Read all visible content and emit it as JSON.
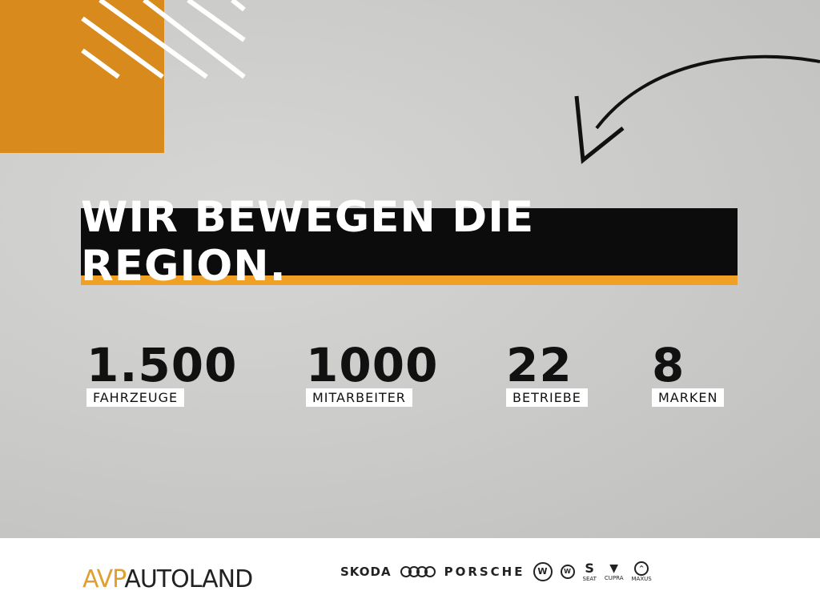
{
  "colors": {
    "orange": "#d88a1c",
    "accent_bar": "#f0a024",
    "headline_bg": "#0c0c0c"
  },
  "headline": "WIR BEWEGEN DIE REGION.",
  "stats": [
    {
      "value": "1.500",
      "label": "FAHRZEUGE"
    },
    {
      "value": "1000",
      "label": "MITARBEITER"
    },
    {
      "value": "22",
      "label": "BETRIEBE"
    },
    {
      "value": "8",
      "label": "MARKEN"
    }
  ],
  "footer": {
    "logo_avp": "AVP",
    "logo_autoland": "AUTOLAND",
    "brands": [
      "SKODA",
      "Audi",
      "PORSCHE",
      "Volkswagen",
      "Volkswagen Nutzfahrzeuge",
      "SEAT",
      "CUPRA",
      "MAXUS"
    ],
    "brand_captions": {
      "seat": "SEAT",
      "cupra": "CUPRA",
      "maxus": "MAXUS"
    }
  }
}
